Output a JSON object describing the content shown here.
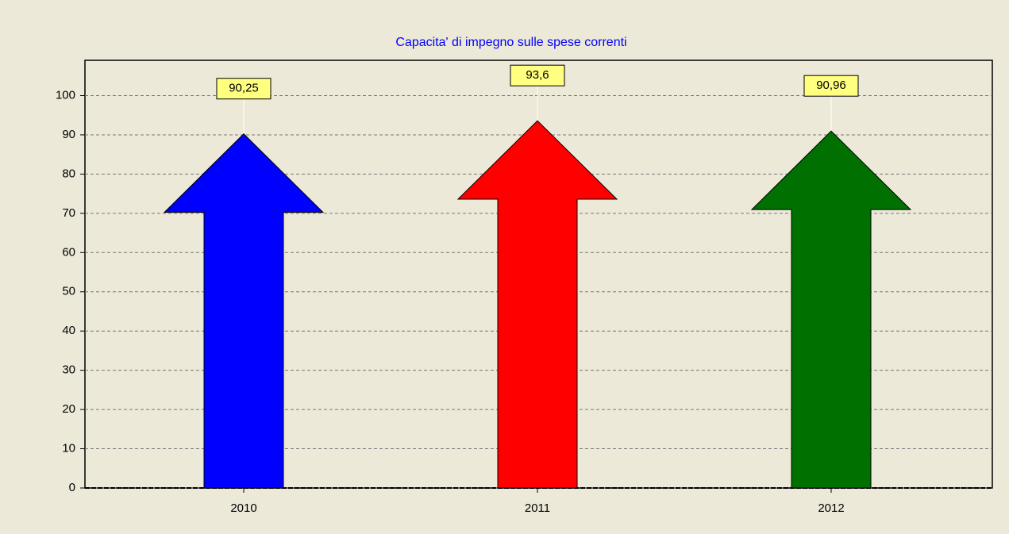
{
  "chart_data": {
    "type": "bar",
    "title": "Capacita' di impegno sulle spese correnti",
    "categories": [
      "2010",
      "2011",
      "2012"
    ],
    "series": [
      {
        "name": null,
        "values": [
          90.25,
          93.6,
          90.96
        ],
        "value_labels": [
          "90,25",
          "93,6",
          "90,96"
        ],
        "colors": [
          "#0000ff",
          "#ff0000",
          "#007000"
        ]
      }
    ],
    "ylim": [
      0,
      109
    ],
    "yticks": [
      0,
      10,
      20,
      30,
      40,
      50,
      60,
      70,
      80,
      90,
      100
    ],
    "grid": true
  }
}
